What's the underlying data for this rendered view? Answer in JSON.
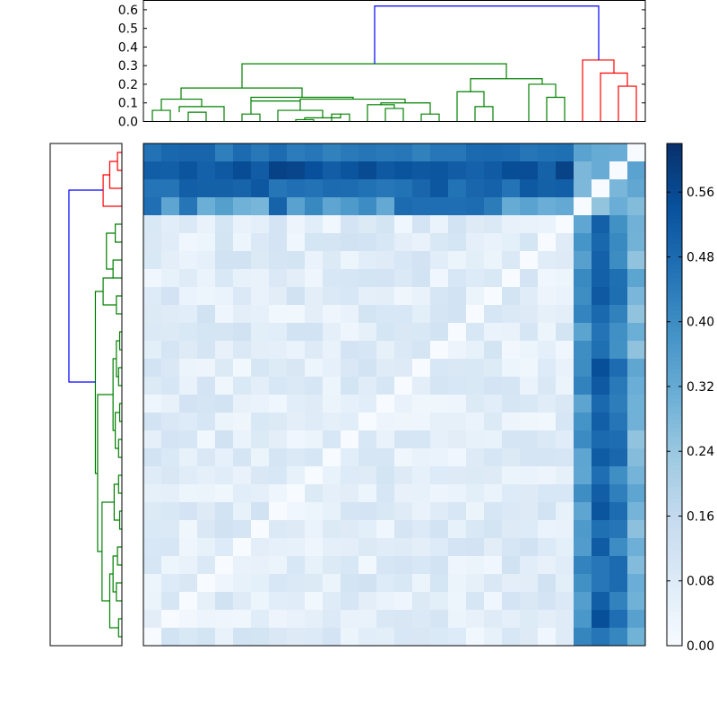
{
  "chart_data": {
    "type": "heatmap",
    "title": "",
    "xlabel": "",
    "ylabel": "",
    "size": 28,
    "colormap": "Blues",
    "colorbar": {
      "vmin": 0.0,
      "vmax": 0.62,
      "ticks": [
        0.0,
        0.08,
        0.16,
        0.24,
        0.32,
        0.4,
        0.48,
        0.56
      ],
      "tick_labels": [
        "0.00",
        "0.08",
        "0.16",
        "0.24",
        "0.32",
        "0.40",
        "0.48",
        "0.56"
      ]
    },
    "top_dendrogram": {
      "ylim": [
        0.0,
        0.65
      ],
      "ticks": [
        0.0,
        0.1,
        0.2,
        0.3,
        0.4,
        0.5,
        0.6
      ],
      "tick_labels": [
        "0.0",
        "0.1",
        "0.2",
        "0.3",
        "0.4",
        "0.5",
        "0.6"
      ],
      "color_threshold_clusters": [
        "green",
        "red",
        "blue"
      ]
    },
    "left_dendrogram": {
      "xlim": [
        0.0,
        0.65
      ]
    },
    "outlier_row_offsets": [
      0.47,
      0.55,
      0.5,
      0.33
    ],
    "cluster_a_size": 24,
    "cluster_b_size": 4,
    "within_a_range": [
      0.02,
      0.12
    ],
    "between_range": [
      0.25,
      0.5
    ],
    "within_b_range": [
      0.25,
      0.35
    ]
  },
  "colors": {
    "cluster_green": "#008000",
    "cluster_red": "#ff0000",
    "link_blue": "#0000ff",
    "axis": "#000000"
  }
}
